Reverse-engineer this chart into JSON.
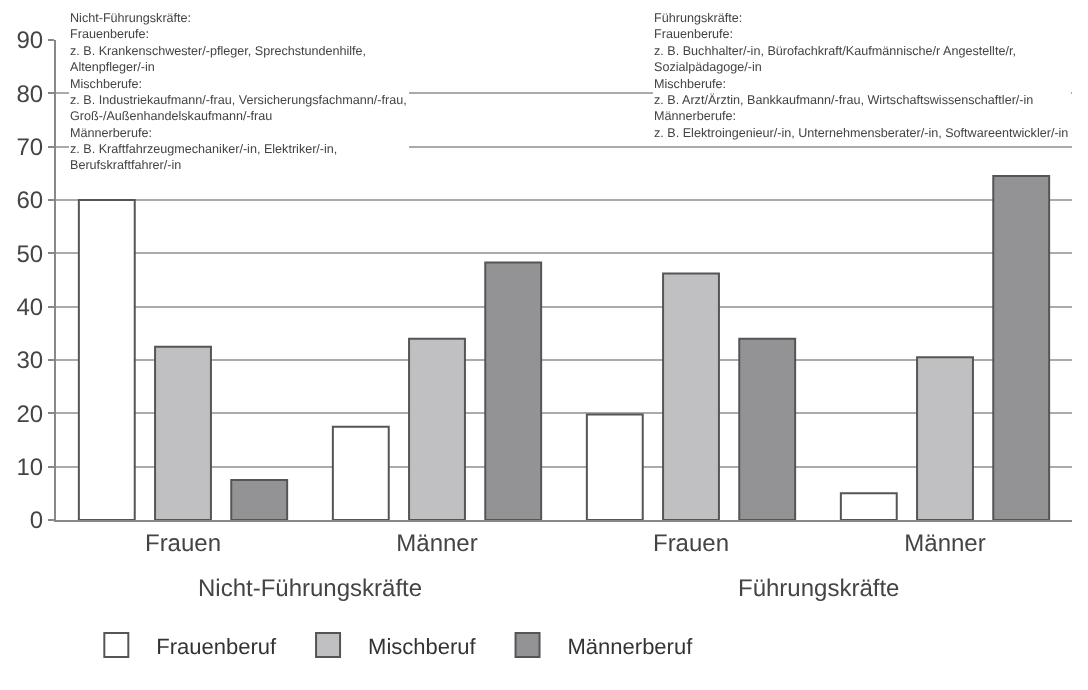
{
  "chart_data": {
    "type": "bar",
    "categories": [
      "Frauen",
      "Männer",
      "Frauen",
      "Männer"
    ],
    "series": [
      {
        "name": "Frauenberuf",
        "color": "#ffffff",
        "values": [
          60,
          17.5,
          19.8,
          5
        ]
      },
      {
        "name": "Mischberuf",
        "color": "#c0c0c2",
        "values": [
          32.5,
          34,
          46.2,
          30.5
        ]
      },
      {
        "name": "Männerberuf",
        "color": "#939396",
        "values": [
          7.5,
          48.3,
          34,
          64.5
        ]
      }
    ],
    "ylim": [
      0,
      90
    ],
    "yticks": [
      0,
      10,
      20,
      30,
      40,
      50,
      60,
      70,
      80,
      90
    ],
    "grid": "y",
    "legend": "bottom",
    "annotations": [
      "Nicht-Führungskräfte",
      "Führungskräfte",
      "Nicht-Führungskräfte:\nFrauenberufe:\nz. B. Krankenschwester/-pfleger, Sprechstundenhilfe,\nAltenpfleger/-in\nMischberufe:\nz. B. Industriekaufmann/-frau, Versicherungsfachmann/-frau,\nGroß-/Außenhandelskaufmann/-frau\nMännerberufe:\nz. B. Kraftfahrzeugmechaniker/-in, Elektriker/-in,\nBerufskraftfahrer/-in",
      "Führungskräfte:\nFrauenberufe:\nz. B. Buchhalter/-in, Bürofachkraft/Kaufmännische/r Angestellte/r,\nSozialpädagoge/-in\nMischberufe:\nz. B. Arzt/Ärztin, Bankkaufmann/-frau, Wirtschaftswissenschaftler/-in\nMännerberufe:\nz. B. Elektroingenieur/-in, Unternehmensberater/-in, Softwareentwickler/-in"
    ]
  }
}
